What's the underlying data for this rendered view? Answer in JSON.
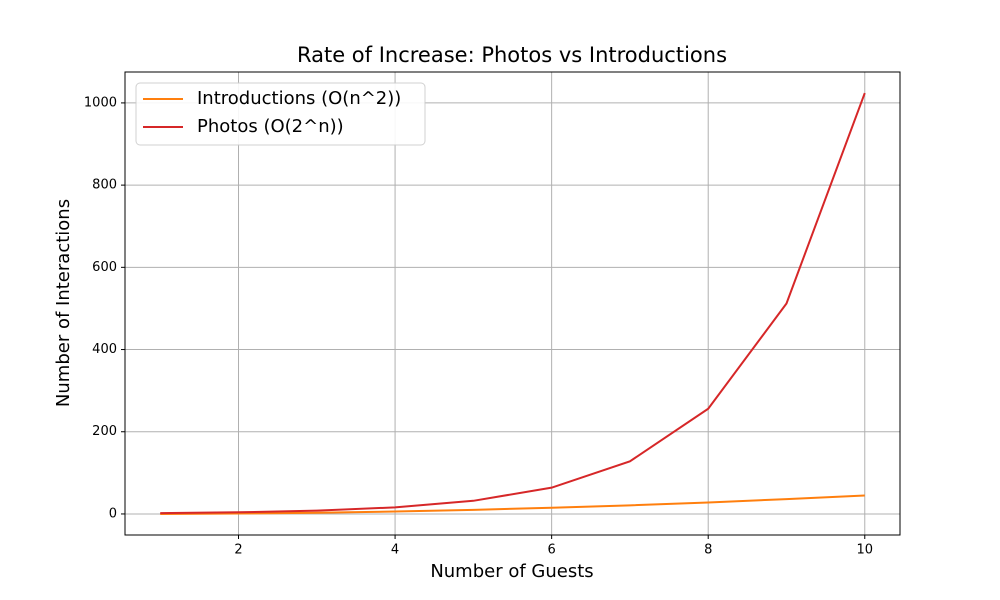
{
  "chart_data": {
    "type": "line",
    "title": "Rate of Increase: Photos vs Introductions",
    "x_label": "Number of Guests",
    "y_label": "Number of Interactions",
    "x": [
      1,
      2,
      3,
      4,
      5,
      6,
      7,
      8,
      9,
      10
    ],
    "series": [
      {
        "name": "Introductions (O(n^2))",
        "color": "#ff7f0e",
        "values": [
          0,
          1,
          3,
          6,
          10,
          15,
          21,
          28,
          36,
          45
        ]
      },
      {
        "name": "Photos (O(2^n))",
        "color": "#d62728",
        "values": [
          2,
          4,
          8,
          16,
          32,
          64,
          128,
          256,
          512,
          1024
        ]
      }
    ],
    "xlim": [
      0.55,
      10.45
    ],
    "ylim": [
      -51.2,
      1075.2
    ],
    "xticks": [
      2,
      4,
      6,
      8,
      10
    ],
    "yticks": [
      0,
      200,
      400,
      600,
      800,
      1000
    ],
    "grid": true,
    "legend": "upper-left"
  }
}
